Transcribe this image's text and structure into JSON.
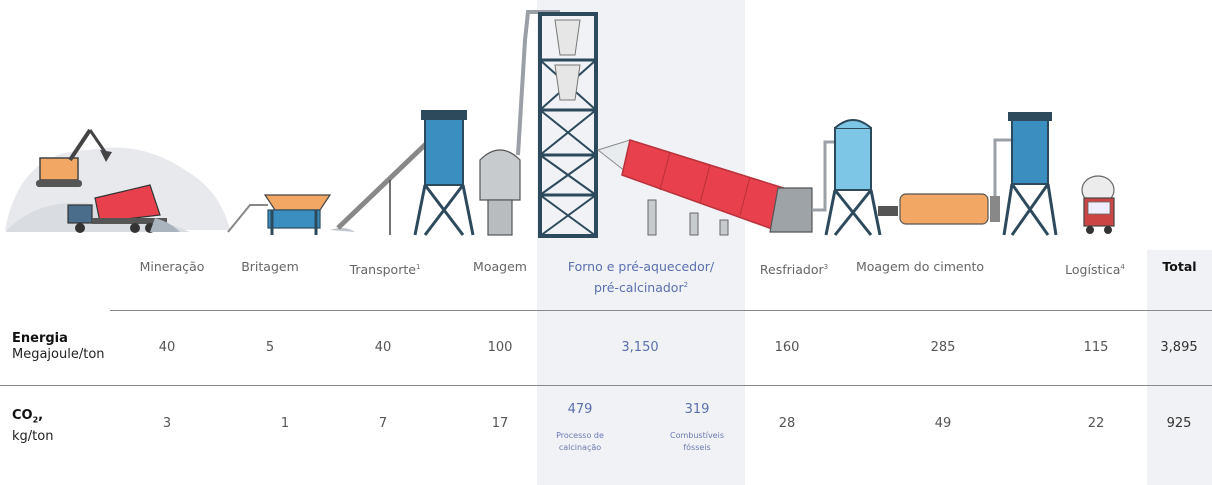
{
  "stages": [
    {
      "label": "Mineração",
      "energy": "40",
      "co2": "3"
    },
    {
      "label": "Britagem",
      "energy": "5",
      "co2": "1"
    },
    {
      "label": "Transporte",
      "footnote": "1",
      "energy": "40",
      "co2": "7"
    },
    {
      "label": "Moagem",
      "energy": "100",
      "co2": "17"
    },
    {
      "label": "Forno e pré-aquecedor/",
      "label2": "pré-calcinador",
      "footnote": "2",
      "energy": "3,150"
    },
    {
      "label": "Resfriador",
      "footnote": "3",
      "energy": "160",
      "co2": "28"
    },
    {
      "label": "Moagem do cimento",
      "energy": "285",
      "co2": "49"
    },
    {
      "label": "Logística",
      "footnote": "4",
      "energy": "115",
      "co2": "22"
    }
  ],
  "kiln_co2": [
    {
      "value": "479",
      "note1": "Processo de",
      "note2": "calcinação"
    },
    {
      "value": "319",
      "note1": "Combustíveis",
      "note2": "fósseis"
    }
  ],
  "total": {
    "label": "Total",
    "energy": "3,895",
    "co2": "925"
  },
  "rows": {
    "energy": {
      "title": "Energia",
      "unit": "Megajoule/ton"
    },
    "co2": {
      "title": "CO",
      "sub": "2",
      "suffix": ",",
      "unit": "kg/ton"
    }
  },
  "colors": {
    "highlight": "#5a6fae",
    "kiln": "#e8404c",
    "silo": "#3a8fc0",
    "steel": "#2c4a5c"
  }
}
